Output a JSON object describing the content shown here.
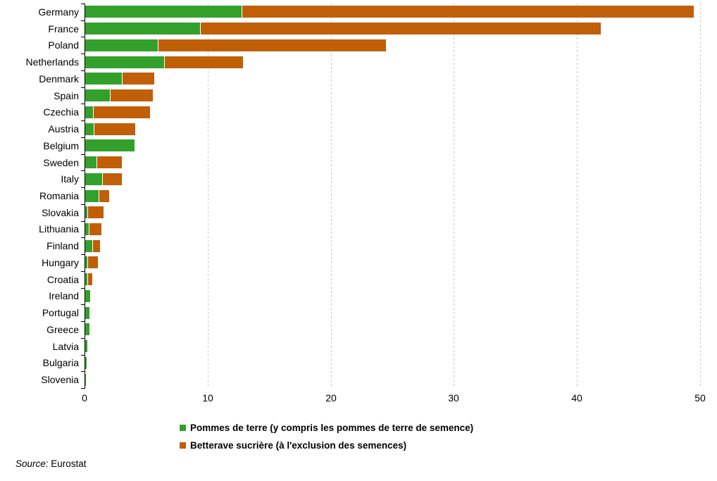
{
  "chart_data": {
    "type": "bar",
    "orientation": "horizontal",
    "stacked": true,
    "title": "",
    "xlabel": "",
    "ylabel": "",
    "xlim": [
      0,
      50
    ],
    "xticks": [
      0,
      10,
      20,
      30,
      40,
      50
    ],
    "grid": "vertical-dashed",
    "legend_position": "bottom",
    "categories": [
      "Germany",
      "France",
      "Poland",
      "Netherlands",
      "Denmark",
      "Spain",
      "Czechia",
      "Austria",
      "Belgium",
      "Sweden",
      "Italy",
      "Romania",
      "Slovakia",
      "Lithuania",
      "Finland",
      "Hungary",
      "Croatia",
      "Ireland",
      "Portugal",
      "Greece",
      "Latvia",
      "Bulgaria",
      "Slovenia"
    ],
    "series": [
      {
        "name": "Pommes de terre (y compris les pommes de terre de semence)",
        "color": "#33a02c",
        "values": [
          12.7,
          9.3,
          5.9,
          6.4,
          3.0,
          2.0,
          0.65,
          0.68,
          4.0,
          0.9,
          1.4,
          1.1,
          0.15,
          0.27,
          0.56,
          0.2,
          0.17,
          0.4,
          0.37,
          0.34,
          0.16,
          0.1,
          0.06
        ]
      },
      {
        "name": "Betterave sucrière (à l'exclusion des semences)",
        "color": "#c05f08",
        "values": [
          36.7,
          32.6,
          18.5,
          6.4,
          2.6,
          3.5,
          4.6,
          3.4,
          0,
          2.1,
          1.55,
          0.85,
          1.35,
          1.05,
          0.63,
          0.85,
          0.43,
          0,
          0,
          0,
          0,
          0,
          0
        ]
      }
    ]
  },
  "footer": {
    "source_label": "Source:",
    "source_text": " Eurostat"
  }
}
